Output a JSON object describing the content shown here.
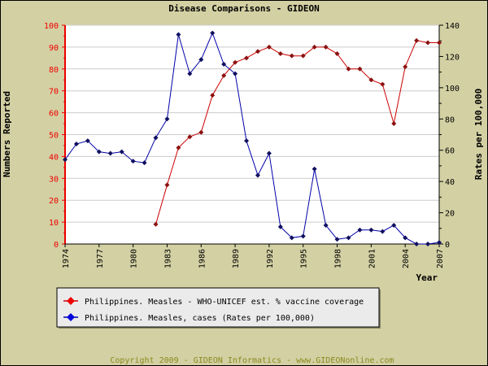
{
  "chart_data": {
    "type": "line",
    "title": "Disease Comparisons - GIDEON",
    "xlabel": "Year",
    "ylabel_left": "Numbers Reported",
    "ylabel_right": "Rates per 100,000",
    "xlim": [
      1974,
      2007
    ],
    "ylim_left": [
      0,
      100
    ],
    "ylim_right": [
      0,
      140
    ],
    "x_ticks": [
      1974,
      1977,
      1980,
      1983,
      1986,
      1989,
      1992,
      1995,
      1998,
      2001,
      2004,
      2007
    ],
    "y_ticks_left": [
      0,
      10,
      20,
      30,
      40,
      50,
      60,
      70,
      80,
      90,
      100
    ],
    "y_ticks_right": [
      0,
      20,
      40,
      60,
      80,
      100,
      120,
      140
    ],
    "grid": true,
    "legend_position": "bottom-left",
    "series": [
      {
        "name": "Philippines. Measles - WHO-UNICEF est. % vaccine coverage",
        "axis": "left",
        "color": "#cc0000",
        "x": [
          1982,
          1983,
          1984,
          1985,
          1986,
          1987,
          1988,
          1989,
          1990,
          1991,
          1992,
          1993,
          1994,
          1995,
          1996,
          1997,
          1998,
          1999,
          2000,
          2001,
          2002,
          2003,
          2004,
          2005,
          2006,
          2007
        ],
        "values": [
          9,
          27,
          44,
          49,
          51,
          68,
          77,
          83,
          85,
          88,
          90,
          87,
          86,
          86,
          90,
          90,
          87,
          80,
          80,
          75,
          73,
          55,
          81,
          93,
          92,
          92
        ]
      },
      {
        "name": "Philippines. Measles, cases (Rates per 100,000)",
        "axis": "right",
        "color": "#0000aa",
        "x": [
          1974,
          1975,
          1976,
          1977,
          1978,
          1979,
          1980,
          1981,
          1982,
          1983,
          1984,
          1985,
          1986,
          1987,
          1988,
          1989,
          1990,
          1991,
          1992,
          1993,
          1994,
          1995,
          1996,
          1997,
          1998,
          1999,
          2000,
          2001,
          2002,
          2003,
          2004,
          2005,
          2006,
          2007
        ],
        "values": [
          54,
          64,
          66,
          59,
          58,
          59,
          53,
          52,
          68,
          80,
          134,
          109,
          118,
          135,
          115,
          109,
          66,
          44,
          58,
          11,
          4,
          5,
          48,
          12,
          3,
          4,
          9,
          9,
          8,
          12,
          4,
          0,
          0,
          1
        ]
      }
    ],
    "footer": "Copyright 2009 - GIDEON Informatics - www.GIDEONonline.com"
  }
}
